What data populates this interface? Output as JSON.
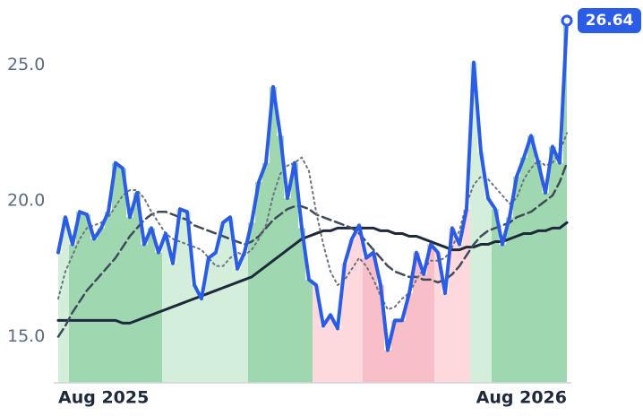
{
  "chart_data": {
    "type": "line",
    "categories": [
      "Aug 2025",
      null,
      null,
      null,
      null,
      null,
      null,
      null,
      null,
      null,
      null,
      null,
      null,
      null,
      null,
      null,
      null,
      null,
      null,
      null,
      null,
      null,
      null,
      null,
      null,
      null,
      null,
      null,
      null,
      null,
      null,
      null,
      null,
      null,
      null,
      null,
      null,
      null,
      null,
      null,
      null,
      null,
      null,
      null,
      null,
      null,
      null,
      null,
      null,
      null,
      null,
      null,
      null,
      null,
      null,
      null,
      null,
      null,
      null,
      null,
      null,
      null,
      null,
      null,
      null,
      null,
      null,
      null,
      null,
      null,
      null,
      "Aug 2026"
    ],
    "ylim": [
      13.3,
      27.4
    ],
    "yticks": [
      {
        "value": 15,
        "label": "15.0"
      },
      {
        "value": 20,
        "label": "20.0"
      },
      {
        "value": 25,
        "label": "25.0"
      }
    ],
    "grid": false,
    "series": [
      {
        "color": "#2b5ce6",
        "dash": "solid",
        "width": 4,
        "values": [
          18.1,
          19.4,
          18.4,
          19.6,
          19.5,
          18.6,
          19.0,
          19.6,
          21.4,
          21.2,
          19.4,
          20.3,
          18.4,
          19.0,
          18.1,
          18.8,
          17.7,
          19.7,
          19.6,
          16.9,
          16.4,
          17.9,
          18.1,
          19.2,
          19.4,
          17.5,
          18.1,
          19.2,
          20.7,
          21.4,
          24.2,
          22.4,
          20.1,
          21.4,
          19.0,
          17.1,
          16.9,
          15.4,
          15.8,
          15.3,
          17.7,
          18.6,
          19.1,
          17.9,
          18.1,
          16.9,
          14.5,
          15.6,
          15.6,
          16.6,
          18.1,
          17.3,
          18.4,
          18.1,
          16.6,
          19.0,
          18.4,
          19.7,
          25.1,
          21.8,
          20.1,
          19.7,
          18.4,
          19.4,
          20.9,
          21.6,
          22.4,
          21.4,
          20.3,
          22.0,
          21.4,
          26.64
        ],
        "area_colors": [
          "#d3eedb",
          "#d3eedb",
          "#9fd8b0",
          "#9fd8b0",
          "#9fd8b0",
          "#9fd8b0",
          "#9fd8b0",
          "#9fd8b0",
          "#9fd8b0",
          "#9fd8b0",
          "#9fd8b0",
          "#9fd8b0",
          "#9fd8b0",
          "#9fd8b0",
          "#9fd8b0",
          "#d3eedb",
          "#d3eedb",
          "#d3eedb",
          "#d3eedb",
          "#d3eedb",
          "#d3eedb",
          "#d3eedb",
          "#d3eedb",
          "#d3eedb",
          "#d3eedb",
          "#d3eedb",
          "#d3eedb",
          "#9fd8b0",
          "#9fd8b0",
          "#9fd8b0",
          "#9fd8b0",
          "#9fd8b0",
          "#9fd8b0",
          "#9fd8b0",
          "#9fd8b0",
          "#9fd8b0",
          "#fdd9de",
          "#fdd9de",
          "#fdd9de",
          "#fdd9de",
          "#fdd9de",
          "#fdd9de",
          "#fdd9de",
          "#f8bfc8",
          "#f8bfc8",
          "#f8bfc8",
          "#f8bfc8",
          "#f8bfc8",
          "#f8bfc8",
          "#f8bfc8",
          "#f8bfc8",
          "#f8bfc8",
          "#f8bfc8",
          "#fdd9de",
          "#fdd9de",
          "#fdd9de",
          "#fdd9de",
          "#fdd9de",
          "#d3eedb",
          "#d3eedb",
          "#d3eedb",
          "#9fd8b0",
          "#9fd8b0",
          "#9fd8b0",
          "#9fd8b0",
          "#9fd8b0",
          "#9fd8b0",
          "#9fd8b0",
          "#9fd8b0",
          "#9fd8b0",
          "#9fd8b0",
          "#9fd8b0"
        ]
      },
      {
        "color": "#6b7280",
        "dash": "dotted",
        "width": 2,
        "values": [
          16.4,
          17.4,
          18.0,
          18.6,
          19.0,
          19.1,
          19.2,
          19.4,
          19.8,
          20.2,
          20.4,
          20.4,
          20.1,
          19.6,
          19.2,
          18.8,
          18.6,
          18.5,
          18.4,
          18.3,
          18.2,
          17.9,
          17.6,
          17.6,
          17.9,
          18.1,
          18.0,
          18.2,
          18.6,
          19.1,
          20.2,
          21.0,
          21.3,
          21.4,
          21.6,
          21.1,
          19.6,
          18.4,
          17.4,
          16.9,
          17.1,
          17.5,
          17.9,
          17.6,
          17.1,
          16.5,
          16.0,
          16.1,
          16.4,
          16.6,
          17.1,
          17.5,
          17.8,
          17.8,
          17.9,
          18.3,
          18.9,
          19.9,
          20.6,
          20.9,
          20.8,
          20.5,
          20.2,
          19.9,
          20.1,
          20.8,
          21.2,
          21.5,
          21.3,
          21.4,
          21.8,
          22.5
        ]
      },
      {
        "color": "#3f4a5a",
        "dash": "dashed",
        "width": 2.5,
        "values": [
          15.0,
          15.4,
          15.9,
          16.3,
          16.7,
          17.0,
          17.3,
          17.6,
          17.9,
          18.3,
          18.7,
          19.0,
          19.3,
          19.5,
          19.6,
          19.6,
          19.5,
          19.4,
          19.3,
          19.1,
          19.0,
          18.9,
          18.8,
          18.7,
          18.6,
          18.5,
          18.4,
          18.5,
          18.7,
          19.0,
          19.3,
          19.5,
          19.7,
          19.8,
          19.8,
          19.7,
          19.5,
          19.4,
          19.3,
          19.2,
          19.1,
          19.0,
          18.8,
          18.5,
          18.2,
          17.9,
          17.6,
          17.4,
          17.3,
          17.2,
          17.2,
          17.1,
          17.1,
          17.0,
          17.1,
          17.3,
          17.6,
          18.0,
          18.4,
          18.7,
          18.9,
          19.0,
          19.1,
          19.2,
          19.4,
          19.5,
          19.6,
          19.8,
          20.0,
          20.2,
          20.7,
          21.4
        ]
      },
      {
        "color": "#1e293b",
        "dash": "solid",
        "width": 3,
        "values": [
          15.6,
          15.6,
          15.6,
          15.6,
          15.6,
          15.6,
          15.6,
          15.6,
          15.6,
          15.5,
          15.5,
          15.6,
          15.7,
          15.8,
          15.9,
          16.0,
          16.1,
          16.2,
          16.3,
          16.4,
          16.5,
          16.6,
          16.7,
          16.8,
          16.9,
          17.0,
          17.1,
          17.2,
          17.4,
          17.6,
          17.8,
          18.0,
          18.2,
          18.4,
          18.6,
          18.7,
          18.8,
          18.9,
          18.9,
          19.0,
          19.0,
          19.0,
          19.0,
          19.0,
          19.0,
          18.9,
          18.9,
          18.8,
          18.8,
          18.7,
          18.7,
          18.6,
          18.5,
          18.4,
          18.3,
          18.2,
          18.2,
          18.3,
          18.3,
          18.4,
          18.4,
          18.5,
          18.5,
          18.6,
          18.7,
          18.8,
          18.8,
          18.9,
          18.9,
          19.0,
          19.0,
          19.2
        ]
      }
    ]
  }
}
